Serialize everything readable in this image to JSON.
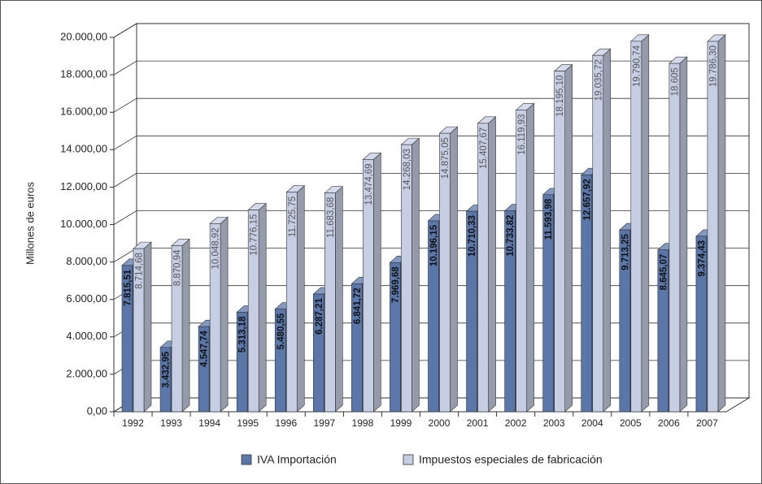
{
  "chart_data": {
    "type": "bar",
    "y_label": "Millones de euros",
    "categories": [
      "1992",
      "1993",
      "1994",
      "1995",
      "1996",
      "1997",
      "1998",
      "1999",
      "2000",
      "2001",
      "2002",
      "2003",
      "2004",
      "2005",
      "2006",
      "2007"
    ],
    "series": [
      {
        "name": "IVA Importación",
        "color": "#5b77aa",
        "values": [
          7815.51,
          3432.95,
          4547.74,
          5313.18,
          5480.55,
          6287.21,
          6841.72,
          7969.68,
          10196.15,
          10710.33,
          10733.82,
          11593.98,
          12657.92,
          9713.25,
          8645.07,
          9374.43
        ],
        "value_labels": [
          "7.815,51",
          "3.432,95",
          "4.547,74",
          "5.313,18",
          "5.480,55",
          "6.287,21",
          "6.841,72",
          "7.969,68",
          "10.196,15",
          "10.710,33",
          "10.733,82",
          "11.593,98",
          "12.657,92",
          "9.713,25",
          "8.645,07",
          "9.374,43"
        ]
      },
      {
        "name": "Impuestos especiales de fabricación",
        "color": "#c6cee4",
        "values": [
          8714.68,
          8870.94,
          10048.92,
          10776.15,
          11725.75,
          11683.68,
          13474.69,
          14268.03,
          14875.05,
          15407.67,
          16119.93,
          18195.1,
          19035.72,
          19790.74,
          18605,
          19786.3
        ],
        "value_labels": [
          "8.714,68",
          "8.870,94",
          "10.048,92",
          "10.776,15",
          "11.725,75",
          "11.683,68",
          "13.474,69",
          "14.268,03",
          "14.875,05",
          "15.407,67",
          "16.119,93",
          "18.195,10",
          "19.035,72",
          "19.790,74",
          "18.605",
          "19.786,30"
        ]
      }
    ],
    "ylim": [
      0,
      20000
    ],
    "yticks": [
      {
        "value": 0,
        "label": "0,00"
      },
      {
        "value": 2000,
        "label": "2.000,00"
      },
      {
        "value": 4000,
        "label": "4.000,00"
      },
      {
        "value": 6000,
        "label": "6.000,00"
      },
      {
        "value": 8000,
        "label": "8.000,00"
      },
      {
        "value": 10000,
        "label": "10.000,00"
      },
      {
        "value": 12000,
        "label": "12.000,00"
      },
      {
        "value": 14000,
        "label": "14.000,00"
      },
      {
        "value": 16000,
        "label": "16.000,00"
      },
      {
        "value": 18000,
        "label": "18.000,00"
      },
      {
        "value": 20000,
        "label": "20.000,00"
      }
    ],
    "grid": true,
    "legend": "bottom"
  }
}
